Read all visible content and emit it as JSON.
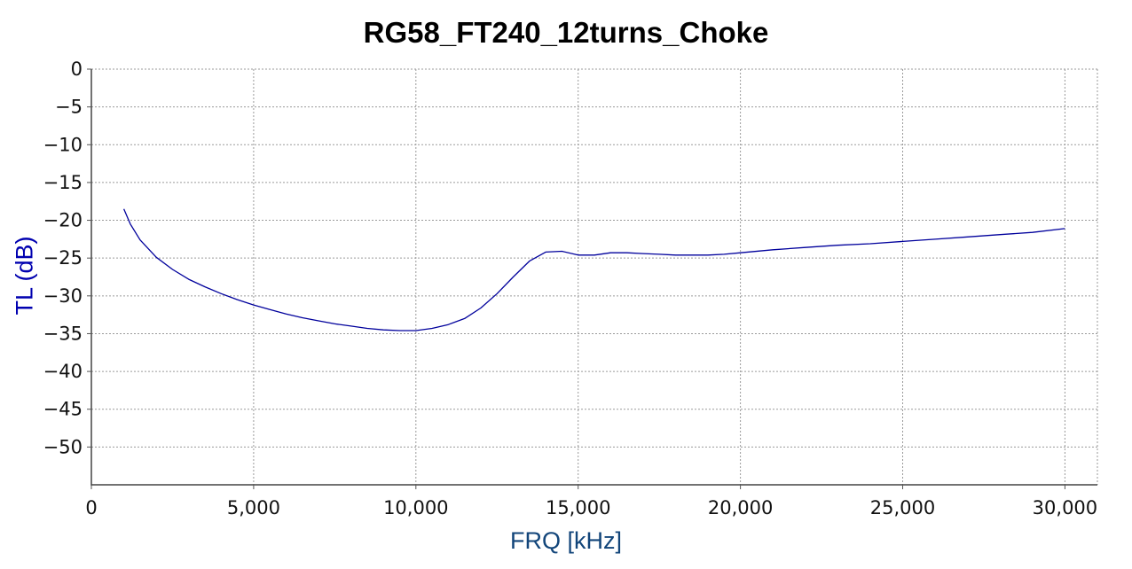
{
  "chart_data": {
    "type": "line",
    "title": "RG58_FT240_12turns_Choke",
    "xlabel": "FRQ [kHz]",
    "ylabel": "TL (dB)",
    "xlim": [
      0,
      31000
    ],
    "ylim": [
      -55,
      0
    ],
    "x_ticks": [
      0,
      5000,
      10000,
      15000,
      20000,
      25000,
      30000
    ],
    "x_tick_labels": [
      "0",
      "5,000",
      "10,000",
      "15,000",
      "20,000",
      "25,000",
      "30,000"
    ],
    "y_ticks": [
      0,
      -5,
      -10,
      -15,
      -20,
      -25,
      -30,
      -35,
      -40,
      -45,
      -50
    ],
    "y_tick_labels": [
      "0",
      "−5",
      "−10",
      "−15",
      "−20",
      "−25",
      "−30",
      "−35",
      "−40",
      "−45",
      "−50"
    ],
    "grid": true,
    "line_color": "#00009c",
    "series": [
      {
        "x": [
          1000,
          1200,
          1500,
          2000,
          2500,
          3000,
          3500,
          4000,
          4500,
          5000,
          5500,
          6000,
          6500,
          7000,
          7500,
          8000,
          8500,
          9000,
          9500,
          10000,
          10500,
          11000,
          11500,
          12000,
          12500,
          13000,
          13500,
          14000,
          14500,
          15000,
          15500,
          16000,
          16500,
          17000,
          17500,
          18000,
          18500,
          19000,
          19500,
          20000,
          21000,
          22000,
          23000,
          24000,
          25000,
          26000,
          27000,
          28000,
          29000,
          30000
        ],
        "y": [
          -18.5,
          -20.5,
          -22.6,
          -24.9,
          -26.5,
          -27.8,
          -28.8,
          -29.7,
          -30.5,
          -31.2,
          -31.8,
          -32.4,
          -32.9,
          -33.3,
          -33.7,
          -34.0,
          -34.3,
          -34.5,
          -34.6,
          -34.6,
          -34.3,
          -33.8,
          -33.0,
          -31.6,
          -29.7,
          -27.5,
          -25.4,
          -24.2,
          -24.1,
          -24.6,
          -24.6,
          -24.3,
          -24.3,
          -24.4,
          -24.5,
          -24.6,
          -24.6,
          -24.6,
          -24.5,
          -24.3,
          -23.9,
          -23.6,
          -23.3,
          -23.1,
          -22.8,
          -22.5,
          -22.2,
          -21.9,
          -21.6,
          -21.1
        ]
      }
    ]
  }
}
